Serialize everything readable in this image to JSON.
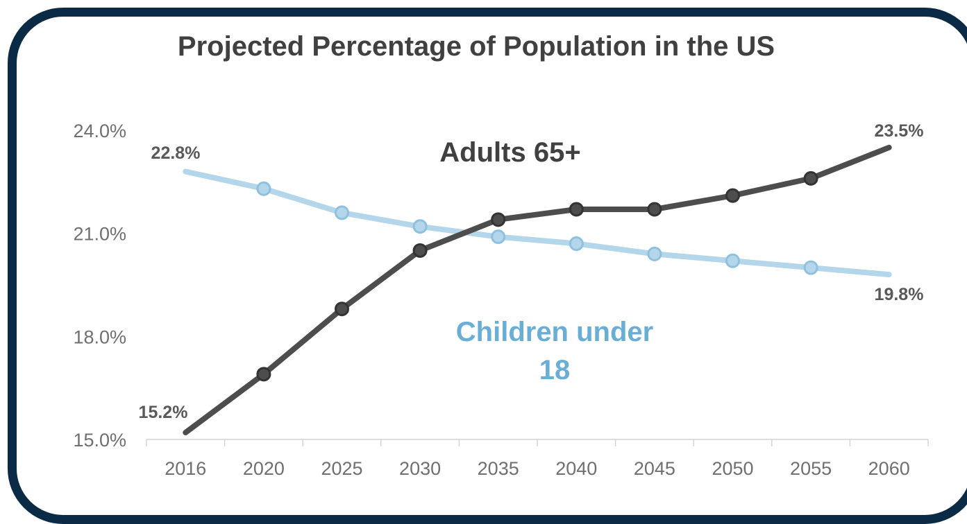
{
  "chart_data": {
    "type": "line",
    "title": "Projected Percentage of Population in the US",
    "categories": [
      "2016",
      "2020",
      "2025",
      "2030",
      "2035",
      "2040",
      "2045",
      "2050",
      "2055",
      "2060"
    ],
    "ylim": [
      15,
      24
    ],
    "yticks": [
      "15.0%",
      "18.0%",
      "21.0%",
      "24.0%"
    ],
    "series": [
      {
        "name": "Adults 65+",
        "color": "#4d4d4d",
        "values": [
          15.2,
          16.9,
          18.8,
          20.5,
          21.4,
          21.7,
          21.7,
          22.1,
          22.6,
          23.5
        ],
        "start_label": "15.2%",
        "end_label": "23.5%"
      },
      {
        "name": "Children under 18",
        "name_lines": [
          "Children under",
          "18"
        ],
        "color": "#b4d6ea",
        "marker_stroke": "#8fc0df",
        "label_color": "#6aaed6",
        "values": [
          22.8,
          22.3,
          21.6,
          21.2,
          20.9,
          20.7,
          20.4,
          20.2,
          20.0,
          19.8
        ],
        "start_label": "22.8%",
        "end_label": "19.8%"
      }
    ],
    "grid": false,
    "legend": "none"
  }
}
